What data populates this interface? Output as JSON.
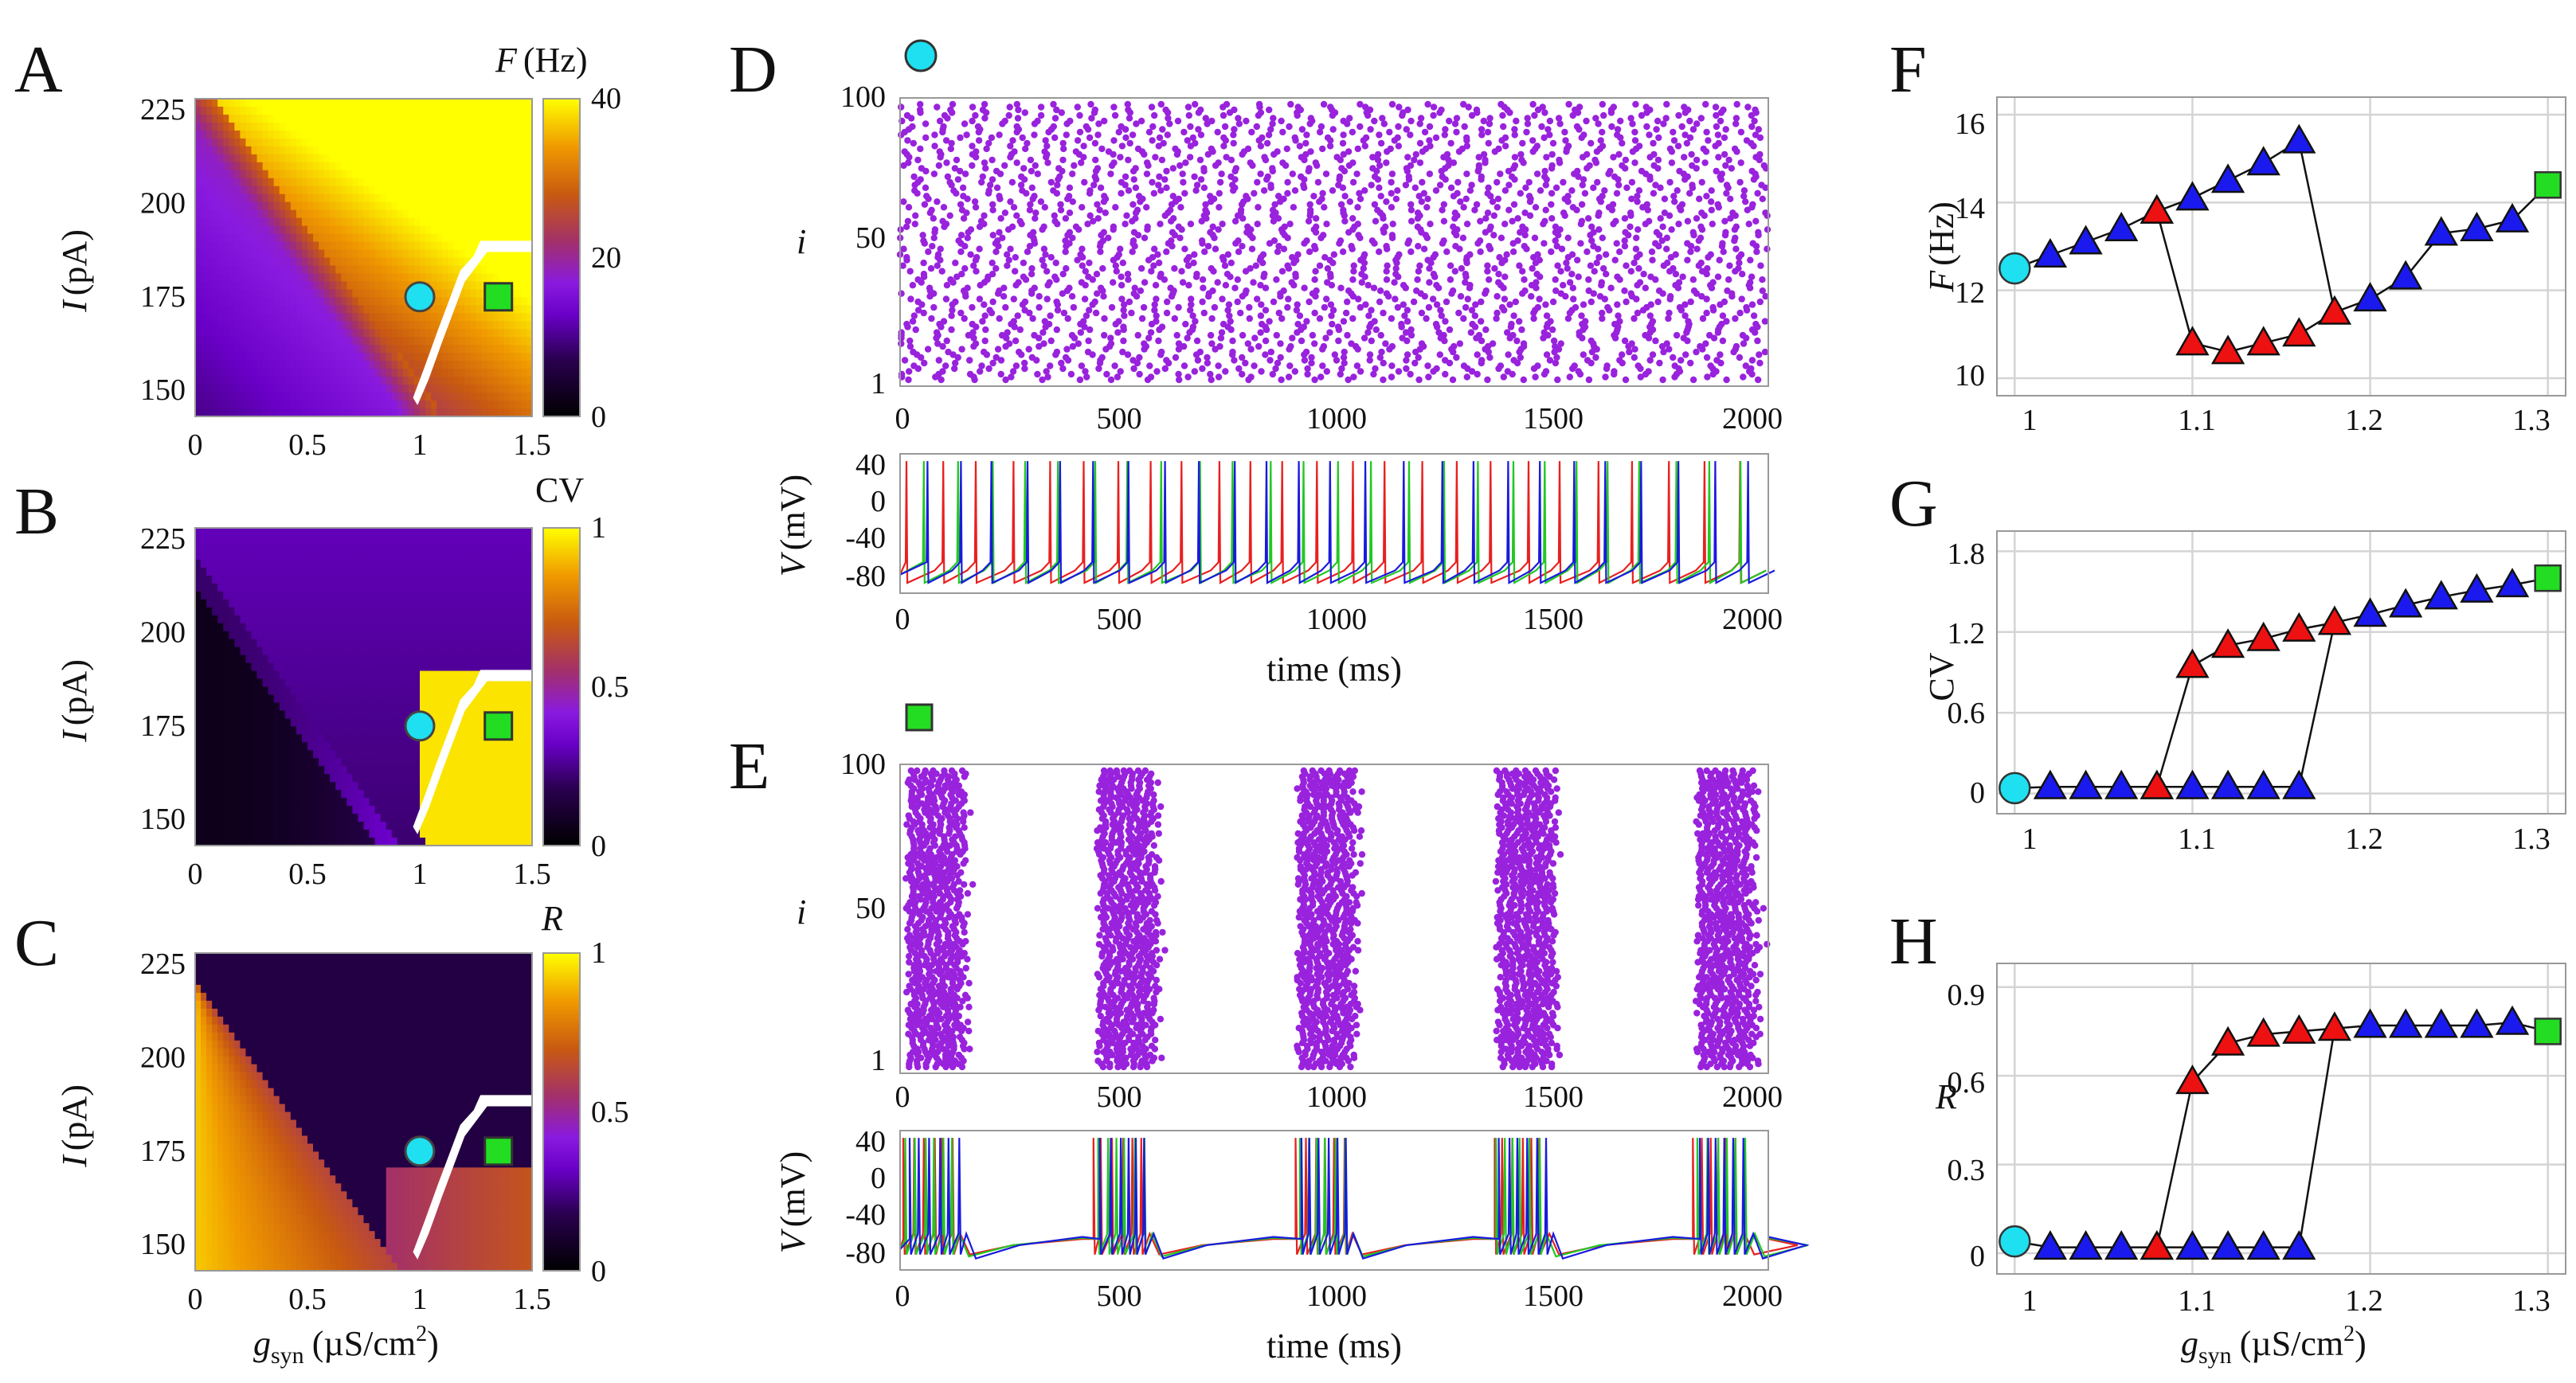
{
  "panels": {
    "A": {
      "letter": "A",
      "cbar_label_var": "F",
      "cbar_label_unit": "(Hz)",
      "cbar_ticks": [
        "0",
        "20",
        "40"
      ]
    },
    "B": {
      "letter": "B",
      "cbar_label": "CV",
      "cbar_ticks": [
        "0",
        "0.5",
        "1"
      ]
    },
    "C": {
      "letter": "C",
      "cbar_label": "R",
      "cbar_ticks": [
        "0",
        "0.5",
        "1"
      ]
    },
    "D": {
      "letter": "D"
    },
    "E": {
      "letter": "E"
    },
    "F": {
      "letter": "F"
    },
    "G": {
      "letter": "G"
    },
    "H": {
      "letter": "H"
    }
  },
  "axis_text": {
    "I_label_var": "I",
    "I_label_unit": "(pA)",
    "I_ticks": [
      "225",
      "200",
      "175",
      "150"
    ],
    "gsyn_ticks": [
      "0",
      "0.5",
      "1",
      "1.5"
    ],
    "gsyn_label_var": "g",
    "gsyn_label_sub": "syn",
    "gsyn_label_unit": "(µS/cm",
    "gsyn_label_sup": "2",
    "gsyn_label_close": ")",
    "raster_y_label": "i",
    "raster_y_ticks": [
      "100",
      "50",
      "1"
    ],
    "time_ticks": [
      "0",
      "500",
      "1000",
      "1500",
      "2000"
    ],
    "V_label_var": "V",
    "V_label_unit": "(mV)",
    "V_ticks": [
      "40",
      "0",
      "-40",
      "-80"
    ],
    "time_label": "time (ms)",
    "right_x_ticks": [
      "1",
      "1.1",
      "1.2",
      "1.3"
    ],
    "F_label_var": "F",
    "F_label_unit": "(Hz)",
    "F_ticks": [
      "16",
      "14",
      "12",
      "10"
    ],
    "CV_label": "CV",
    "CV_ticks": [
      "1.8",
      "1.2",
      "0.6",
      "0"
    ],
    "R_label": "R",
    "R_ticks": [
      "0.9",
      "0.6",
      "0.3",
      "0"
    ]
  },
  "colors": {
    "cyan_marker": "#1ee0f0",
    "green_marker": "#22dd22",
    "raster_dot": "#9922dd",
    "blue_triangle": "#1a1aee",
    "red_triangle": "#ee1111",
    "trace_red": "#e82020",
    "trace_green": "#22c822",
    "trace_blue": "#1a1add",
    "bistable_region": "#ffffff"
  },
  "chart_data": [
    {
      "panel": "A",
      "type": "heatmap",
      "x_range": [
        0,
        1.5
      ],
      "y_range": [
        143,
        228
      ],
      "value_range": [
        0,
        40
      ],
      "colorscale": "gnuplot",
      "markers": [
        {
          "shape": "circle",
          "x": 1.0,
          "y": 175
        },
        {
          "shape": "square",
          "x": 1.35,
          "y": 175
        }
      ]
    },
    {
      "panel": "B",
      "type": "heatmap",
      "x_range": [
        0,
        1.5
      ],
      "y_range": [
        143,
        228
      ],
      "value_range": [
        0,
        1
      ],
      "colorscale": "gnuplot",
      "markers": [
        {
          "shape": "circle",
          "x": 1.0,
          "y": 175
        },
        {
          "shape": "square",
          "x": 1.35,
          "y": 175
        }
      ]
    },
    {
      "panel": "C",
      "type": "heatmap",
      "x_range": [
        0,
        1.5
      ],
      "y_range": [
        143,
        228
      ],
      "value_range": [
        0,
        1
      ],
      "colorscale": "gnuplot",
      "markers": [
        {
          "shape": "circle",
          "x": 1.0,
          "y": 175
        },
        {
          "shape": "square",
          "x": 1.35,
          "y": 175
        }
      ]
    },
    {
      "panel": "D",
      "type": "scatter",
      "subtype": "raster",
      "x_range": [
        0,
        2000
      ],
      "y_range": [
        1,
        100
      ],
      "regime": "asynchronous",
      "mean_rate_hz": 12.5,
      "marker": "circle"
    },
    {
      "panel": "D-trace",
      "type": "line",
      "x_range": [
        0,
        2000
      ],
      "y_range": [
        -90,
        45
      ],
      "series": [
        {
          "color": "red"
        },
        {
          "color": "green"
        },
        {
          "color": "blue"
        }
      ]
    },
    {
      "panel": "E",
      "type": "scatter",
      "subtype": "raster",
      "x_range": [
        0,
        2000
      ],
      "y_range": [
        1,
        100
      ],
      "regime": "bursting",
      "burst_starts_ms": [
        0,
        440,
        900,
        1360,
        1820
      ],
      "burst_duration_ms": 160,
      "marker": "square"
    },
    {
      "panel": "E-trace",
      "type": "line",
      "x_range": [
        0,
        2000
      ],
      "y_range": [
        -90,
        45
      ],
      "series": [
        {
          "color": "red"
        },
        {
          "color": "green"
        },
        {
          "color": "blue"
        }
      ]
    },
    {
      "panel": "F",
      "type": "line",
      "x_range": [
        0.99,
        1.31
      ],
      "y_range": [
        9.6,
        16.4
      ],
      "series": [
        {
          "marker": "blue-triangle",
          "x": [
            1.02,
            1.04,
            1.06,
            1.08,
            1.1,
            1.12,
            1.14,
            1.16
          ],
          "y": [
            12.8,
            13.1,
            13.4,
            13.8,
            14.1,
            14.5,
            14.9,
            15.4
          ]
        },
        {
          "marker": "red-triangle",
          "x": [
            1.08,
            1.1,
            1.12,
            1.14,
            1.16,
            1.18
          ],
          "y": [
            13.8,
            10.8,
            10.6,
            10.8,
            11.0,
            11.5
          ]
        },
        {
          "marker": "blue-triangle",
          "x": [
            1.2,
            1.22,
            1.24,
            1.26,
            1.28
          ],
          "y": [
            11.8,
            12.3,
            13.3,
            13.4,
            13.6
          ]
        }
      ],
      "endpoints": [
        {
          "shape": "circle",
          "x": 1.0,
          "y": 12.5
        },
        {
          "shape": "square",
          "x": 1.3,
          "y": 14.4
        }
      ]
    },
    {
      "panel": "G",
      "type": "line",
      "x_range": [
        0.99,
        1.31
      ],
      "y_range": [
        -0.15,
        1.95
      ],
      "series": [
        {
          "marker": "blue-triangle",
          "x": [
            1.02,
            1.04,
            1.06,
            1.08,
            1.1,
            1.12,
            1.14,
            1.16
          ],
          "y": [
            0.05,
            0.05,
            0.05,
            0.05,
            0.05,
            0.05,
            0.05,
            0.05
          ]
        },
        {
          "marker": "red-triangle",
          "x": [
            1.08,
            1.1,
            1.12,
            1.14,
            1.16,
            1.18
          ],
          "y": [
            0.05,
            0.95,
            1.1,
            1.15,
            1.22,
            1.27
          ]
        },
        {
          "marker": "blue-triangle",
          "x": [
            1.2,
            1.22,
            1.24,
            1.26,
            1.28
          ],
          "y": [
            1.33,
            1.4,
            1.46,
            1.51,
            1.55
          ]
        }
      ],
      "endpoints": [
        {
          "shape": "circle",
          "x": 1.0,
          "y": 0.04
        },
        {
          "shape": "square",
          "x": 1.3,
          "y": 1.6
        }
      ]
    },
    {
      "panel": "H",
      "type": "line",
      "x_range": [
        0.99,
        1.31
      ],
      "y_range": [
        -0.07,
        0.98
      ],
      "series": [
        {
          "marker": "blue-triangle",
          "x": [
            1.02,
            1.04,
            1.06,
            1.08,
            1.1,
            1.12,
            1.14,
            1.16
          ],
          "y": [
            0.02,
            0.02,
            0.02,
            0.02,
            0.02,
            0.02,
            0.02,
            0.02
          ]
        },
        {
          "marker": "red-triangle",
          "x": [
            1.08,
            1.1,
            1.12,
            1.14,
            1.16,
            1.18
          ],
          "y": [
            0.02,
            0.58,
            0.71,
            0.74,
            0.75,
            0.76
          ]
        },
        {
          "marker": "blue-triangle",
          "x": [
            1.2,
            1.22,
            1.24,
            1.26,
            1.28
          ],
          "y": [
            0.77,
            0.77,
            0.77,
            0.77,
            0.78
          ]
        }
      ],
      "endpoints": [
        {
          "shape": "circle",
          "x": 1.0,
          "y": 0.04
        },
        {
          "shape": "square",
          "x": 1.3,
          "y": 0.75
        }
      ]
    }
  ]
}
